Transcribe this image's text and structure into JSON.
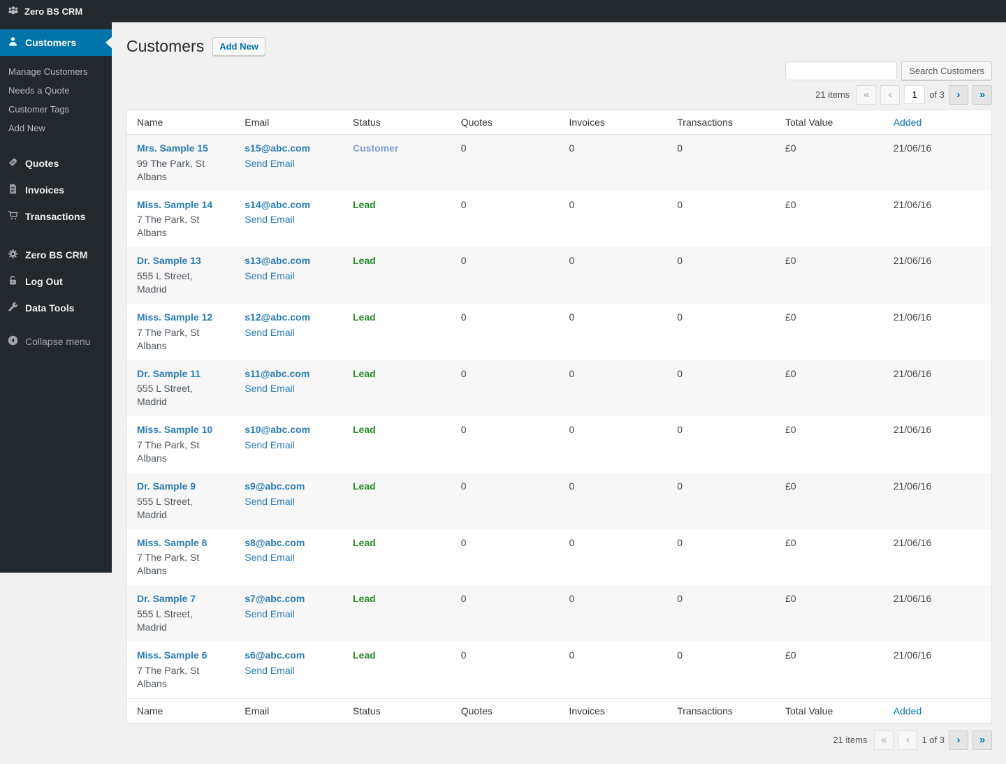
{
  "admin_bar": {
    "logo_icon": "crm-groups-icon",
    "title": "Zero BS CRM"
  },
  "sidebar": {
    "active_item": {
      "label": "Customers",
      "icon": "user-icon"
    },
    "submenu": [
      "Manage Customers",
      "Needs a Quote",
      "Customer Tags",
      "Add New"
    ],
    "menu": {
      "quotes": {
        "label": "Quotes",
        "icon": "tag-icon"
      },
      "invoices": {
        "label": "Invoices",
        "icon": "document-icon"
      },
      "transactions": {
        "label": "Transactions",
        "icon": "cart-icon"
      },
      "settings": {
        "label": "Zero BS CRM",
        "icon": "gear-icon"
      },
      "logout": {
        "label": "Log Out",
        "icon": "unlock-icon"
      },
      "datatools": {
        "label": "Data Tools",
        "icon": "wrench-icon"
      },
      "collapse": {
        "label": "Collapse menu",
        "icon": "collapse-arrow-icon"
      }
    }
  },
  "page": {
    "title": "Customers",
    "add_new_label": "Add New"
  },
  "search": {
    "value": "",
    "button_label": "Search Customers"
  },
  "pagination_top": {
    "items": "21 items",
    "first": "«",
    "prev": "‹",
    "page_value": "1",
    "of_label": "of 3",
    "next": "›",
    "last": "»"
  },
  "pagination_bottom": {
    "items": "21 items",
    "first": "«",
    "prev": "‹",
    "page_label": "1 of 3",
    "next": "›",
    "last": "»"
  },
  "table": {
    "columns": [
      {
        "label": "Name",
        "sortable": false
      },
      {
        "label": "Email",
        "sortable": false
      },
      {
        "label": "Status",
        "sortable": false
      },
      {
        "label": "Quotes",
        "sortable": false
      },
      {
        "label": "Invoices",
        "sortable": false
      },
      {
        "label": "Transactions",
        "sortable": false
      },
      {
        "label": "Total Value",
        "sortable": false
      },
      {
        "label": "Added",
        "sortable": true
      }
    ],
    "rows": [
      {
        "name": "Mrs. Sample 15",
        "address": "99 The Park, St Albans",
        "email": "s15@abc.com",
        "send_email": "Send Email",
        "status": "Customer",
        "status_type": "customer",
        "quotes": "0",
        "invoices": "0",
        "transactions": "0",
        "total_value": "£0",
        "added": "21/06/16"
      },
      {
        "name": "Miss. Sample 14",
        "address": "7 The Park, St Albans",
        "email": "s14@abc.com",
        "send_email": "Send Email",
        "status": "Lead",
        "status_type": "lead",
        "quotes": "0",
        "invoices": "0",
        "transactions": "0",
        "total_value": "£0",
        "added": "21/06/16"
      },
      {
        "name": "Dr. Sample 13",
        "address": "555 L Street, Madrid",
        "email": "s13@abc.com",
        "send_email": "Send Email",
        "status": "Lead",
        "status_type": "lead",
        "quotes": "0",
        "invoices": "0",
        "transactions": "0",
        "total_value": "£0",
        "added": "21/06/16"
      },
      {
        "name": "Miss. Sample 12",
        "address": "7 The Park, St Albans",
        "email": "s12@abc.com",
        "send_email": "Send Email",
        "status": "Lead",
        "status_type": "lead",
        "quotes": "0",
        "invoices": "0",
        "transactions": "0",
        "total_value": "£0",
        "added": "21/06/16"
      },
      {
        "name": "Dr. Sample 11",
        "address": "555 L Street, Madrid",
        "email": "s11@abc.com",
        "send_email": "Send Email",
        "status": "Lead",
        "status_type": "lead",
        "quotes": "0",
        "invoices": "0",
        "transactions": "0",
        "total_value": "£0",
        "added": "21/06/16"
      },
      {
        "name": "Miss. Sample 10",
        "address": "7 The Park, St Albans",
        "email": "s10@abc.com",
        "send_email": "Send Email",
        "status": "Lead",
        "status_type": "lead",
        "quotes": "0",
        "invoices": "0",
        "transactions": "0",
        "total_value": "£0",
        "added": "21/06/16"
      },
      {
        "name": "Dr. Sample 9",
        "address": "555 L Street, Madrid",
        "email": "s9@abc.com",
        "send_email": "Send Email",
        "status": "Lead",
        "status_type": "lead",
        "quotes": "0",
        "invoices": "0",
        "transactions": "0",
        "total_value": "£0",
        "added": "21/06/16"
      },
      {
        "name": "Miss. Sample 8",
        "address": "7 The Park, St Albans",
        "email": "s8@abc.com",
        "send_email": "Send Email",
        "status": "Lead",
        "status_type": "lead",
        "quotes": "0",
        "invoices": "0",
        "transactions": "0",
        "total_value": "£0",
        "added": "21/06/16"
      },
      {
        "name": "Dr. Sample 7",
        "address": "555 L Street, Madrid",
        "email": "s7@abc.com",
        "send_email": "Send Email",
        "status": "Lead",
        "status_type": "lead",
        "quotes": "0",
        "invoices": "0",
        "transactions": "0",
        "total_value": "£0",
        "added": "21/06/16"
      },
      {
        "name": "Miss. Sample 6",
        "address": "7 The Park, St Albans",
        "email": "s6@abc.com",
        "send_email": "Send Email",
        "status": "Lead",
        "status_type": "lead",
        "quotes": "0",
        "invoices": "0",
        "transactions": "0",
        "total_value": "£0",
        "added": "21/06/16"
      }
    ]
  },
  "colors": {
    "accent": "#0073aa",
    "sidebar_bg": "#23282d",
    "content_bg": "#f1f1f1",
    "table_link": "#2b7cb0",
    "status_lead": "#288a28",
    "status_customer": "#7f9fd9",
    "row_stripe": "#f7f7f7"
  }
}
